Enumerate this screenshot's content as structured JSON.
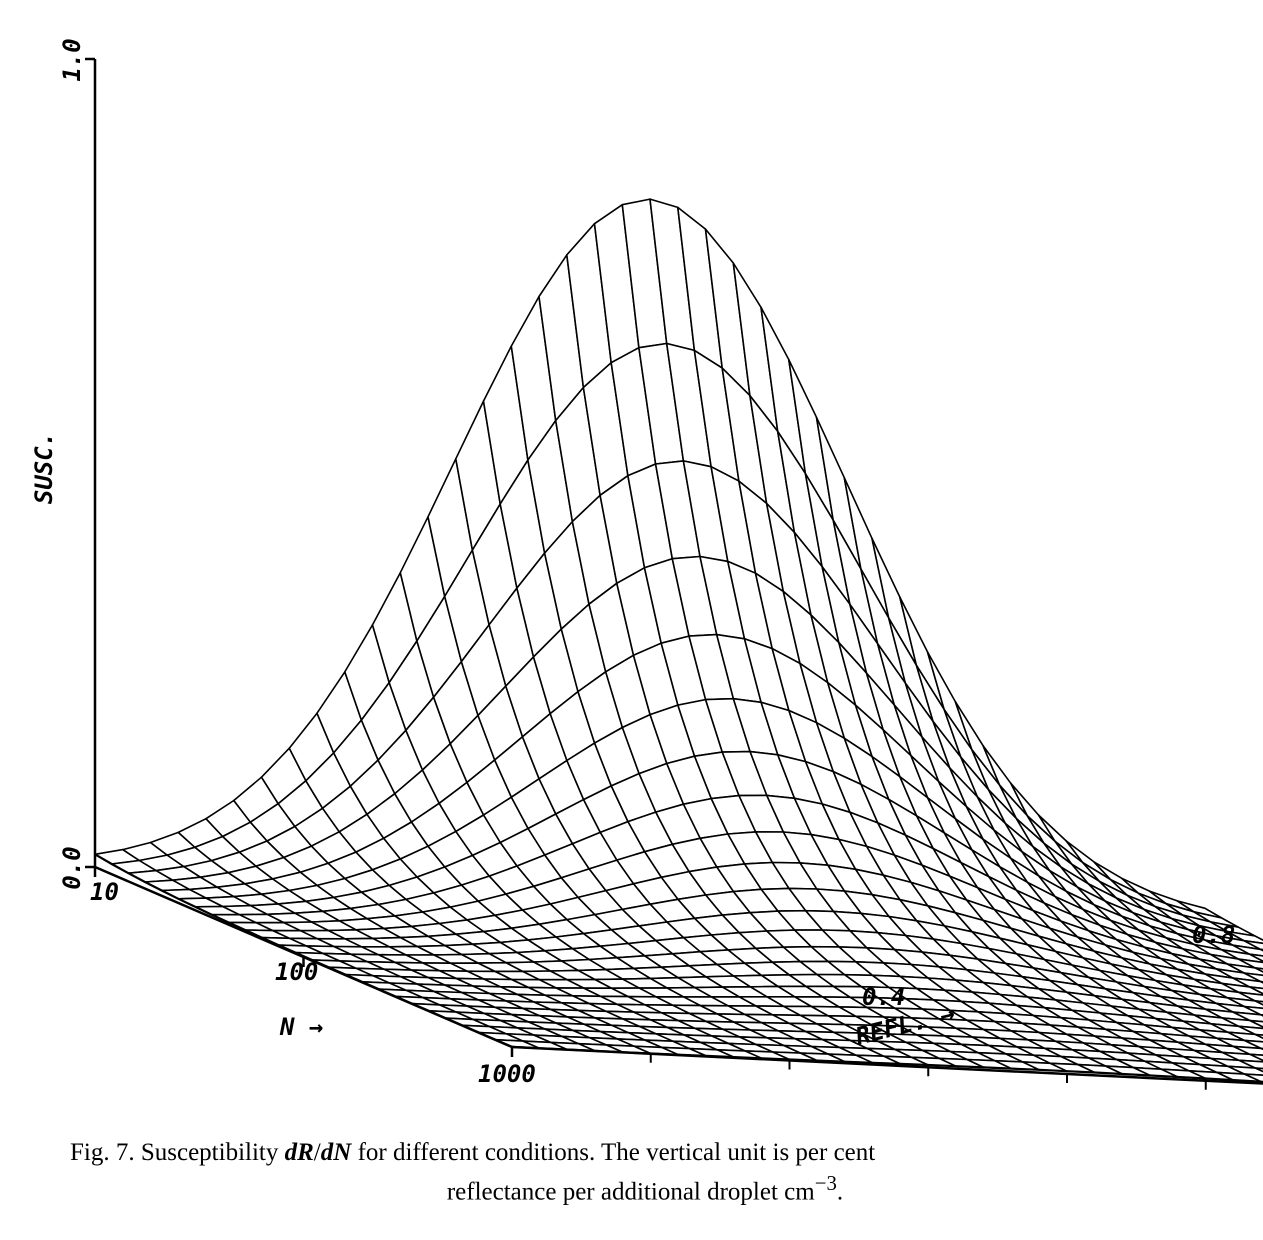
{
  "chart_data": {
    "type": "surface",
    "title": "",
    "axes": {
      "z": {
        "label": "SUSC.",
        "range": [
          0.0,
          1.0
        ],
        "ticks": [
          "0.0",
          "1.0"
        ]
      },
      "n": {
        "label": "N →",
        "scale": "log",
        "range": [
          10,
          1000
        ],
        "ticks": [
          "10",
          "100",
          "1000"
        ]
      },
      "r": {
        "label": "REFL. →",
        "range": [
          0.0,
          0.8
        ],
        "ticks": [
          "0.4",
          "0.8"
        ]
      }
    },
    "surface_samples": [
      {
        "N": 10,
        "REFL": 0.0,
        "SUSC": 0.1
      },
      {
        "N": 10,
        "REFL": 0.4,
        "SUSC": 0.86
      },
      {
        "N": 10,
        "REFL": 0.8,
        "SUSC": 0.0
      },
      {
        "N": 100,
        "REFL": 0.4,
        "SUSC": 0.09
      },
      {
        "N": 1000,
        "REFL": 0.4,
        "SUSC": 0.01
      }
    ],
    "grid": {
      "n_lines": 25,
      "r_lines": 40
    }
  },
  "caption": {
    "lead": "Fig. 7. Susceptibility ",
    "dR": "dR",
    "slash": "/",
    "dN": "dN",
    "rest": " for different conditions. The vertical unit is per cent",
    "line2": "reflectance per additional droplet cm",
    "sup": "−3",
    "end": "."
  }
}
